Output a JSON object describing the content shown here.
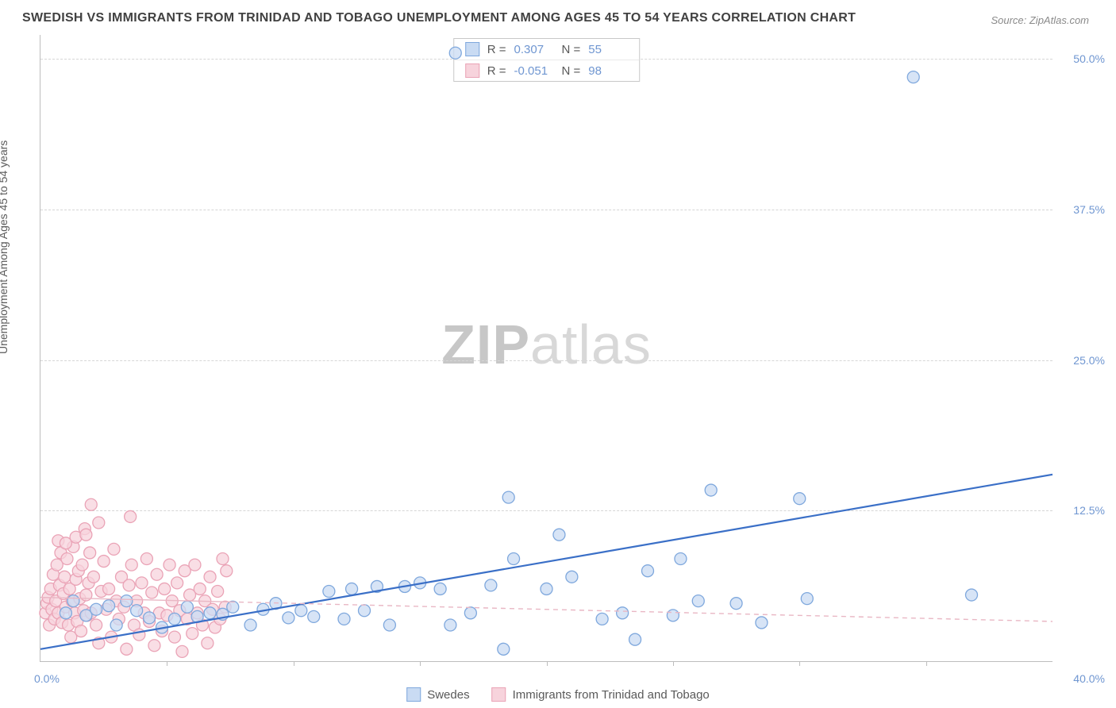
{
  "title": "SWEDISH VS IMMIGRANTS FROM TRINIDAD AND TOBAGO UNEMPLOYMENT AMONG AGES 45 TO 54 YEARS CORRELATION CHART",
  "source": "Source: ZipAtlas.com",
  "ylabel": "Unemployment Among Ages 45 to 54 years",
  "watermark_bold": "ZIP",
  "watermark_light": "atlas",
  "chart": {
    "type": "scatter",
    "background_color": "#ffffff",
    "grid_color": "#d6d6d6",
    "axis_color": "#bdbdbd",
    "label_color": "#6f96d1",
    "xlim": [
      0,
      40
    ],
    "ylim": [
      0,
      52
    ],
    "ytick_values": [
      12.5,
      25.0,
      37.5,
      50.0
    ],
    "ytick_labels": [
      "12.5%",
      "25.0%",
      "37.5%",
      "50.0%"
    ],
    "xtick_values": [
      5,
      10,
      15,
      20,
      25,
      30,
      35
    ],
    "x_min_label": "0.0%",
    "x_max_label": "40.0%",
    "marker_radius": 7.5,
    "marker_stroke_width": 1.3,
    "series": [
      {
        "name": "Swedes",
        "fill": "#c9dbf3",
        "stroke": "#7fa8dd",
        "line_color": "#3a6fc7",
        "line_dash": "none",
        "line_width": 2.2,
        "R_label": "R =",
        "R": "0.307",
        "N_label": "N =",
        "N": "55",
        "trend": {
          "x1": 0,
          "y1": 1.0,
          "x2": 40,
          "y2": 15.5
        },
        "points": [
          [
            1.0,
            4.0
          ],
          [
            1.3,
            5.0
          ],
          [
            1.8,
            3.8
          ],
          [
            2.2,
            4.3
          ],
          [
            2.7,
            4.6
          ],
          [
            3.0,
            3.0
          ],
          [
            3.4,
            5.0
          ],
          [
            3.8,
            4.2
          ],
          [
            4.3,
            3.6
          ],
          [
            4.8,
            2.8
          ],
          [
            5.3,
            3.5
          ],
          [
            5.8,
            4.5
          ],
          [
            6.2,
            3.7
          ],
          [
            6.7,
            4.0
          ],
          [
            7.2,
            3.9
          ],
          [
            7.6,
            4.5
          ],
          [
            8.3,
            3.0
          ],
          [
            8.8,
            4.3
          ],
          [
            9.3,
            4.8
          ],
          [
            9.8,
            3.6
          ],
          [
            10.3,
            4.2
          ],
          [
            10.8,
            3.7
          ],
          [
            11.4,
            5.8
          ],
          [
            12.0,
            3.5
          ],
          [
            12.3,
            6.0
          ],
          [
            12.8,
            4.2
          ],
          [
            13.3,
            6.2
          ],
          [
            13.8,
            3.0
          ],
          [
            14.4,
            6.2
          ],
          [
            15.0,
            6.5
          ],
          [
            15.8,
            6.0
          ],
          [
            16.2,
            3.0
          ],
          [
            16.4,
            50.5
          ],
          [
            17.0,
            4.0
          ],
          [
            17.8,
            6.3
          ],
          [
            18.3,
            1.0
          ],
          [
            18.5,
            13.6
          ],
          [
            18.7,
            8.5
          ],
          [
            20.0,
            6.0
          ],
          [
            20.5,
            10.5
          ],
          [
            21.0,
            7.0
          ],
          [
            22.2,
            3.5
          ],
          [
            23.0,
            4.0
          ],
          [
            23.5,
            1.8
          ],
          [
            24.0,
            7.5
          ],
          [
            25.0,
            3.8
          ],
          [
            25.3,
            8.5
          ],
          [
            26.0,
            5.0
          ],
          [
            26.5,
            14.2
          ],
          [
            27.5,
            4.8
          ],
          [
            28.5,
            3.2
          ],
          [
            30.0,
            13.5
          ],
          [
            30.3,
            5.2
          ],
          [
            34.5,
            48.5
          ],
          [
            36.8,
            5.5
          ]
        ]
      },
      {
        "name": "Immigrants from Trinidad and Tobago",
        "fill": "#f7d3dc",
        "stroke": "#eaa3b6",
        "line_color": "#e9b7c4",
        "line_dash": "6 5",
        "line_width": 1.4,
        "R_label": "R =",
        "R": "-0.051",
        "N_label": "N =",
        "N": "98",
        "trend": {
          "x1": 0,
          "y1": 5.3,
          "x2": 40,
          "y2": 3.3
        },
        "trend_solid_until": 7.5,
        "points": [
          [
            0.2,
            4.0
          ],
          [
            0.25,
            4.8
          ],
          [
            0.3,
            5.3
          ],
          [
            0.35,
            3.0
          ],
          [
            0.4,
            6.0
          ],
          [
            0.45,
            4.3
          ],
          [
            0.5,
            7.2
          ],
          [
            0.55,
            3.5
          ],
          [
            0.6,
            5.0
          ],
          [
            0.65,
            8.0
          ],
          [
            0.7,
            4.0
          ],
          [
            0.75,
            6.3
          ],
          [
            0.8,
            9.0
          ],
          [
            0.85,
            3.2
          ],
          [
            0.9,
            5.6
          ],
          [
            0.95,
            7.0
          ],
          [
            1.0,
            4.5
          ],
          [
            1.05,
            8.5
          ],
          [
            1.1,
            3.0
          ],
          [
            1.15,
            6.0
          ],
          [
            1.2,
            2.0
          ],
          [
            1.25,
            5.0
          ],
          [
            1.3,
            9.5
          ],
          [
            1.35,
            4.0
          ],
          [
            1.4,
            6.8
          ],
          [
            1.45,
            3.3
          ],
          [
            1.5,
            7.5
          ],
          [
            1.55,
            5.2
          ],
          [
            1.6,
            2.5
          ],
          [
            1.65,
            8.0
          ],
          [
            1.7,
            4.2
          ],
          [
            1.75,
            11.0
          ],
          [
            1.8,
            5.5
          ],
          [
            1.85,
            3.8
          ],
          [
            1.9,
            6.5
          ],
          [
            1.95,
            9.0
          ],
          [
            2.0,
            4.0
          ],
          [
            2.1,
            7.0
          ],
          [
            2.2,
            3.0
          ],
          [
            2.3,
            1.5
          ],
          [
            2.4,
            5.8
          ],
          [
            2.5,
            8.3
          ],
          [
            2.6,
            4.3
          ],
          [
            2.7,
            6.0
          ],
          [
            2.8,
            2.0
          ],
          [
            2.9,
            9.3
          ],
          [
            3.0,
            5.0
          ],
          [
            3.1,
            3.5
          ],
          [
            3.2,
            7.0
          ],
          [
            3.3,
            4.5
          ],
          [
            3.4,
            1.0
          ],
          [
            3.5,
            6.3
          ],
          [
            3.55,
            12.0
          ],
          [
            3.6,
            8.0
          ],
          [
            3.7,
            3.0
          ],
          [
            3.8,
            5.0
          ],
          [
            3.9,
            2.2
          ],
          [
            4.0,
            6.5
          ],
          [
            4.1,
            4.0
          ],
          [
            4.2,
            8.5
          ],
          [
            4.3,
            3.3
          ],
          [
            4.4,
            5.7
          ],
          [
            4.5,
            1.3
          ],
          [
            4.6,
            7.2
          ],
          [
            4.7,
            4.0
          ],
          [
            4.8,
            2.5
          ],
          [
            4.9,
            6.0
          ],
          [
            5.0,
            3.8
          ],
          [
            5.1,
            8.0
          ],
          [
            5.2,
            5.0
          ],
          [
            5.3,
            2.0
          ],
          [
            5.4,
            6.5
          ],
          [
            5.5,
            4.2
          ],
          [
            5.6,
            0.8
          ],
          [
            5.7,
            7.5
          ],
          [
            5.8,
            3.5
          ],
          [
            5.9,
            5.5
          ],
          [
            6.0,
            2.3
          ],
          [
            6.1,
            8.0
          ],
          [
            6.2,
            4.0
          ],
          [
            6.3,
            6.0
          ],
          [
            6.4,
            3.0
          ],
          [
            6.5,
            5.0
          ],
          [
            6.6,
            1.5
          ],
          [
            6.7,
            7.0
          ],
          [
            6.8,
            4.3
          ],
          [
            6.9,
            2.8
          ],
          [
            7.0,
            5.8
          ],
          [
            7.1,
            3.5
          ],
          [
            7.2,
            8.5
          ],
          [
            7.3,
            4.5
          ],
          [
            7.35,
            7.5
          ],
          [
            2.0,
            13.0
          ],
          [
            2.3,
            11.5
          ],
          [
            0.7,
            10.0
          ],
          [
            1.0,
            9.8
          ],
          [
            1.4,
            10.3
          ],
          [
            1.8,
            10.5
          ]
        ]
      }
    ]
  },
  "legend_swedes": "Swedes",
  "legend_tt": "Immigrants from Trinidad and Tobago"
}
